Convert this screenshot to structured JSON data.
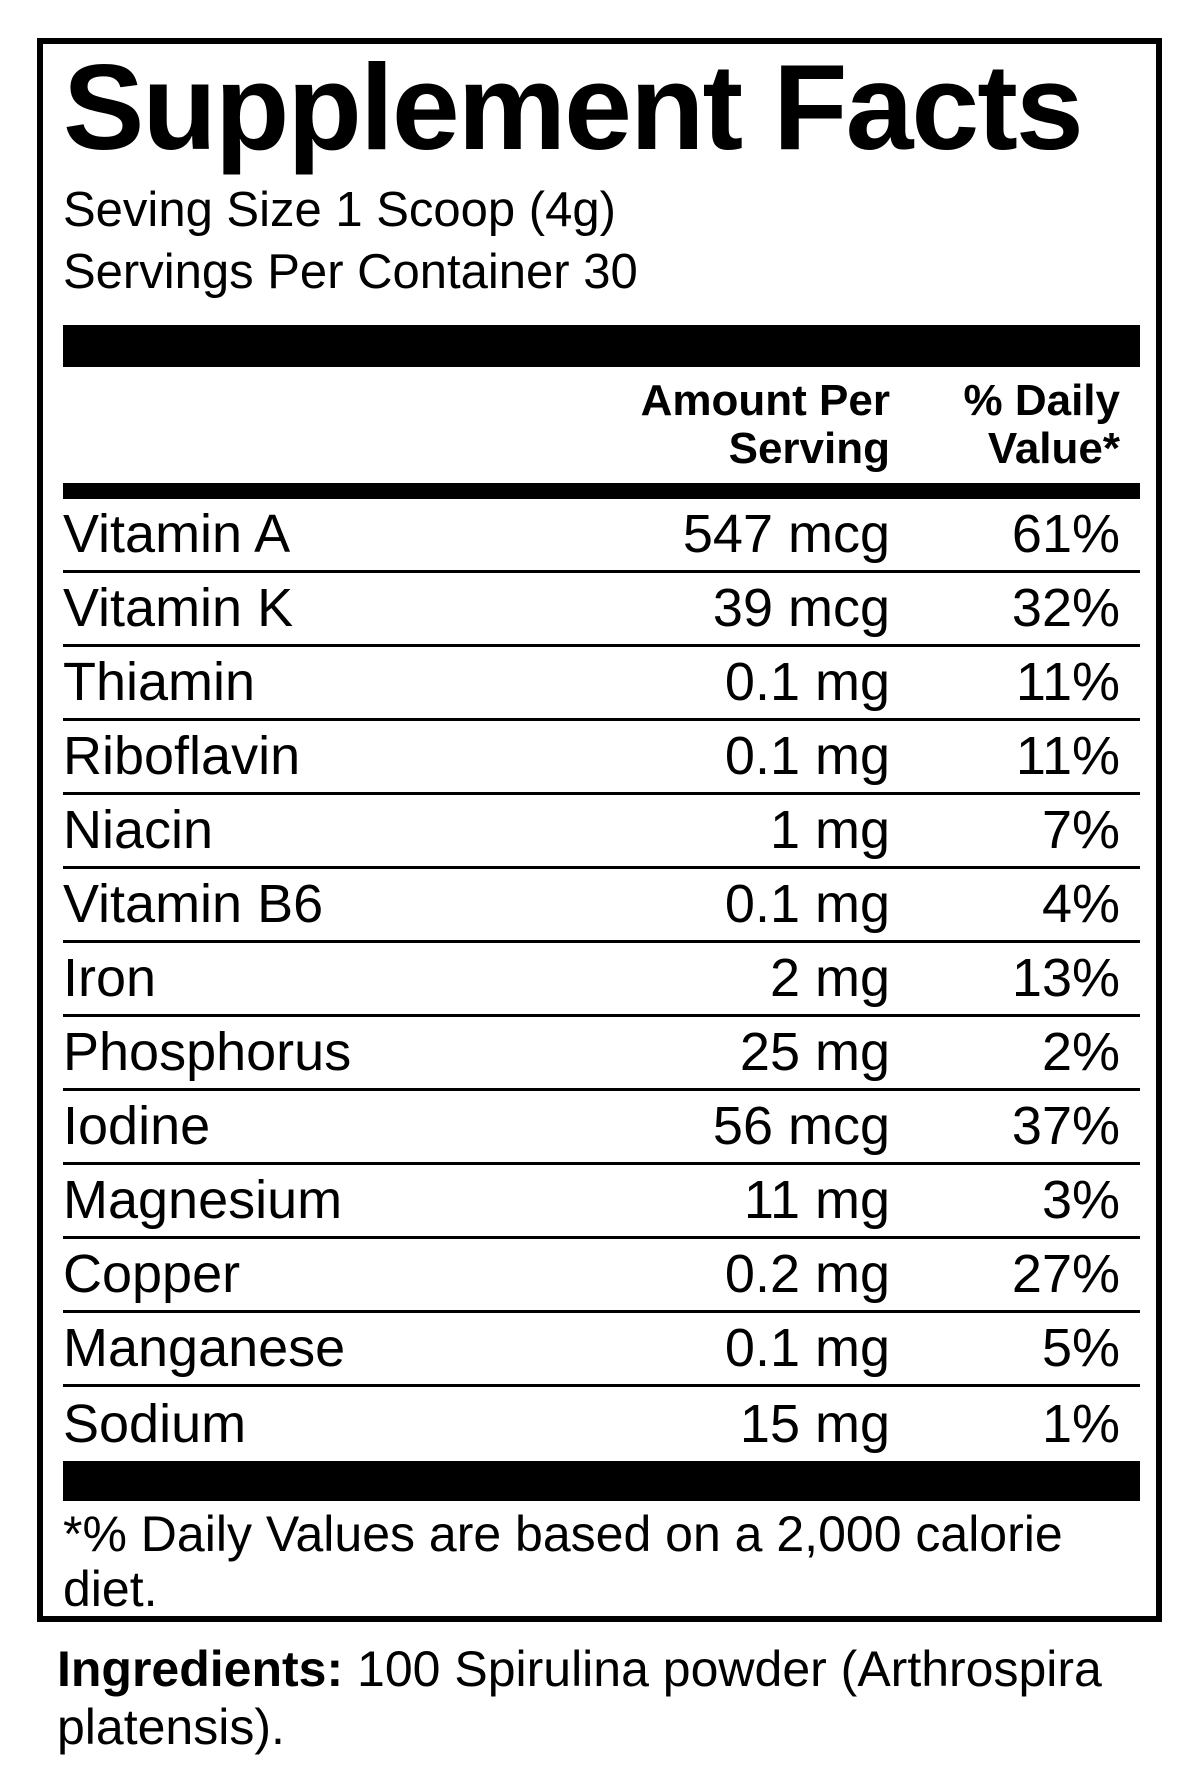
{
  "label": {
    "title": "Supplement Facts",
    "serving_size": "Seving Size 1 Scoop (4g)",
    "servings_per_container": "Servings Per Container 30",
    "columns": {
      "amount_line1": "Amount Per",
      "amount_line2": "Serving",
      "dv_line1": "% Daily",
      "dv_line2": "Value*"
    },
    "rows": [
      {
        "name": "Vitamin A",
        "amount": "547 mcg",
        "dv": "61%"
      },
      {
        "name": "Vitamin K",
        "amount": "39 mcg",
        "dv": "32%"
      },
      {
        "name": "Thiamin",
        "amount": "0.1 mg",
        "dv": "11%"
      },
      {
        "name": "Riboflavin",
        "amount": "0.1 mg",
        "dv": "11%"
      },
      {
        "name": "Niacin",
        "amount": "1 mg",
        "dv": "7%"
      },
      {
        "name": "Vitamin B6",
        "amount": "0.1 mg",
        "dv": "4%"
      },
      {
        "name": "Iron",
        "amount": "2 mg",
        "dv": "13%"
      },
      {
        "name": "Phosphorus",
        "amount": "25 mg",
        "dv": "2%"
      },
      {
        "name": "Iodine",
        "amount": "56 mcg",
        "dv": "37%"
      },
      {
        "name": "Magnesium",
        "amount": "11 mg",
        "dv": "3%"
      },
      {
        "name": "Copper",
        "amount": "0.2 mg",
        "dv": "27%"
      },
      {
        "name": "Manganese",
        "amount": "0.1 mg",
        "dv": "5%"
      },
      {
        "name": "Sodium",
        "amount": "15 mg",
        "dv": "1%"
      }
    ],
    "footnote": "*% Daily Values are based on a 2,000 calorie diet.",
    "ingredients_label": "Ingredients:",
    "ingredients_text": " 100 Spirulina powder (Arthrospira platensis)."
  },
  "colors": {
    "text": "#000000",
    "background": "#ffffff"
  }
}
